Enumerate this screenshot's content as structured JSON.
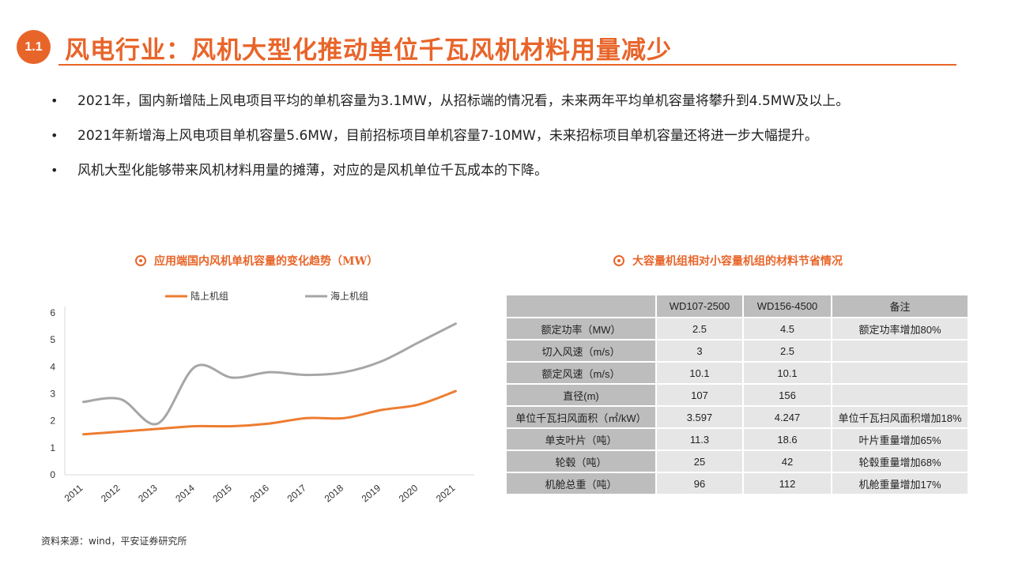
{
  "header": {
    "section_number": "1.1",
    "title": "风电行业：风机大型化推动单位千瓦风机材料用量减少"
  },
  "bullets": [
    "2021年，国内新增陆上风电项目平均的单机容量为3.1MW，从招标端的情况看，未来两年平均单机容量将攀升到4.5MW及以上。",
    "2021年新增海上风电项目单机容量5.6MW，目前招标项目单机容量7-10MW，未来招标项目单机容量还将进一步大幅提升。",
    "风机大型化能够带来风机材料用量的摊薄，对应的是风机单位千瓦成本的下降。"
  ],
  "bullet_glyph": "•",
  "chart_title": "应用端国内风机单机容量的变化趋势（MW）",
  "table_title": "大容量机组相对小容量机组的材料节省情况",
  "source": "资料来源：wind，平安证券研究所",
  "colors": {
    "accent": "#e8652a",
    "onshore": "#ed7d31",
    "offshore": "#a6a6a6"
  },
  "chart_data": {
    "type": "line",
    "title": "应用端国内风机单机容量的变化趋势（MW）",
    "categories": [
      "2011",
      "2012",
      "2013",
      "2014",
      "2015",
      "2016",
      "2017",
      "2018",
      "2019",
      "2020",
      "2021"
    ],
    "series": [
      {
        "name": "陆上机组",
        "color": "#ed7d31",
        "values": [
          1.5,
          1.6,
          1.7,
          1.8,
          1.8,
          1.9,
          2.1,
          2.1,
          2.4,
          2.6,
          3.1
        ]
      },
      {
        "name": "海上机组",
        "color": "#a6a6a6",
        "values": [
          2.7,
          2.8,
          1.9,
          4.0,
          3.6,
          3.8,
          3.7,
          3.8,
          4.2,
          4.9,
          5.6
        ]
      }
    ],
    "ylim": [
      0,
      6
    ],
    "yticks": [
      0,
      1,
      2,
      3,
      4,
      5,
      6
    ],
    "legend_position": "top",
    "grid": false
  },
  "table": {
    "headers": [
      "",
      "WD107-2500",
      "WD156-4500",
      "备注"
    ],
    "rows": [
      [
        "额定功率（MW）",
        "2.5",
        "4.5",
        "额定功率增加80%"
      ],
      [
        "切入风速（m/s）",
        "3",
        "2.5",
        ""
      ],
      [
        "额定风速（m/s）",
        "10.1",
        "10.1",
        ""
      ],
      [
        "直径(m)",
        "107",
        "156",
        ""
      ],
      [
        "单位千瓦扫风面积（㎡/kW）",
        "3.597",
        "4.247",
        "单位千瓦扫风面积增加18%"
      ],
      [
        "单支叶片（吨）",
        "11.3",
        "18.6",
        "叶片重量增加65%"
      ],
      [
        "轮毂（吨）",
        "25",
        "42",
        "轮毂重量增加68%"
      ],
      [
        "机舱总重（吨）",
        "96",
        "112",
        "机舱重量增加17%"
      ]
    ]
  }
}
